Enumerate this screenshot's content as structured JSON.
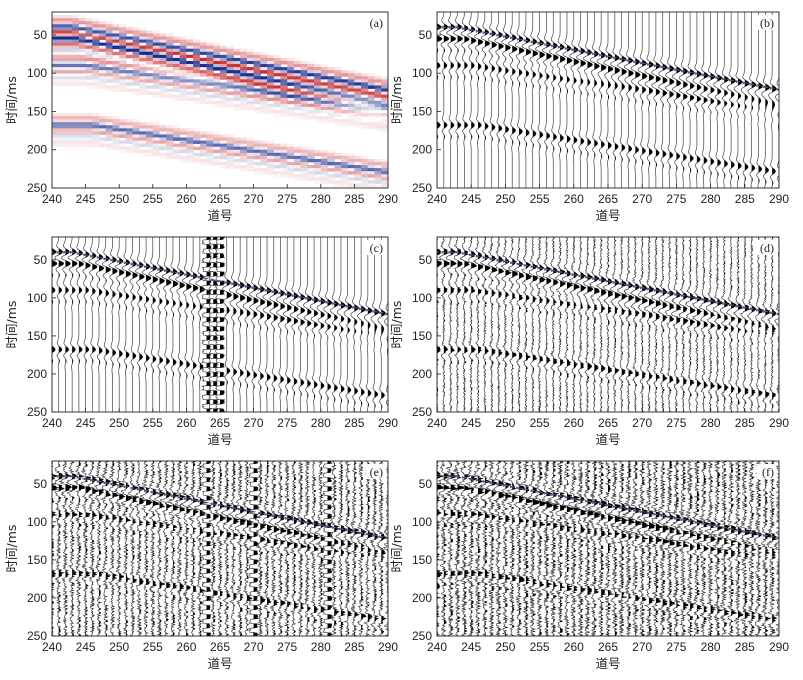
{
  "chart_data": {
    "type": "seismic-gather",
    "panels": [
      {
        "id": "a",
        "label": "(a)",
        "style": "image",
        "xlabel": "道号",
        "ylabel": "时间/ms",
        "xlim": [
          240,
          290
        ],
        "ylim": [
          250,
          20
        ],
        "xticks": [
          240,
          245,
          250,
          255,
          260,
          265,
          270,
          275,
          280,
          285,
          290
        ],
        "yticks": [
          50,
          100,
          150,
          200,
          250
        ],
        "noise": 0,
        "bad_traces": [],
        "picks": false
      },
      {
        "id": "b",
        "label": "(b)",
        "style": "wiggle",
        "xlabel": "道号",
        "ylabel": "时间/ms",
        "xlim": [
          240,
          290
        ],
        "ylim": [
          250,
          20
        ],
        "xticks": [
          240,
          245,
          250,
          255,
          260,
          265,
          270,
          275,
          280,
          285,
          290
        ],
        "yticks": [
          50,
          100,
          150,
          200,
          250
        ],
        "noise": 0,
        "bad_traces": [],
        "picks": true
      },
      {
        "id": "c",
        "label": "(c)",
        "style": "wiggle",
        "xlabel": "道号",
        "ylabel": "时间/ms",
        "xlim": [
          240,
          290
        ],
        "ylim": [
          250,
          20
        ],
        "xticks": [
          240,
          245,
          250,
          255,
          260,
          265,
          270,
          275,
          280,
          285,
          290
        ],
        "yticks": [
          50,
          100,
          150,
          200,
          250
        ],
        "noise": 0,
        "bad_traces": [
          263,
          264,
          265
        ],
        "picks": true
      },
      {
        "id": "d",
        "label": "(d)",
        "style": "wiggle",
        "xlabel": "道号",
        "ylabel": "时间/ms",
        "xlim": [
          240,
          290
        ],
        "ylim": [
          250,
          20
        ],
        "xticks": [
          240,
          245,
          250,
          255,
          260,
          265,
          270,
          275,
          280,
          285,
          290
        ],
        "yticks": [
          50,
          100,
          150,
          200,
          250
        ],
        "noise": 0.22,
        "bad_traces": [],
        "picks": true
      },
      {
        "id": "e",
        "label": "(e)",
        "style": "wiggle",
        "xlabel": "道号",
        "ylabel": "时间/ms",
        "xlim": [
          240,
          290
        ],
        "ylim": [
          250,
          20
        ],
        "xticks": [
          240,
          245,
          250,
          255,
          260,
          265,
          270,
          275,
          280,
          285,
          290
        ],
        "yticks": [
          50,
          100,
          150,
          200,
          250
        ],
        "noise": 0.45,
        "bad_traces": [
          263,
          270,
          281
        ],
        "picks": true
      },
      {
        "id": "f",
        "label": "(f)",
        "style": "wiggle",
        "xlabel": "道号",
        "ylabel": "时间/ms",
        "xlim": [
          240,
          290
        ],
        "ylim": [
          250,
          20
        ],
        "xticks": [
          240,
          245,
          250,
          255,
          260,
          265,
          270,
          275,
          280,
          285,
          290
        ],
        "yticks": [
          50,
          100,
          150,
          200,
          250
        ],
        "noise": 0.55,
        "bad_traces": [],
        "picks": true
      }
    ],
    "events": [
      {
        "name": "first-arrival",
        "t0": 40,
        "apex_trace": 243,
        "slope": 1.75,
        "amplitude": 1.0
      },
      {
        "name": "event-2",
        "t0": 55,
        "apex_trace": 244,
        "slope": 1.9,
        "amplitude": 0.9
      },
      {
        "name": "event-3",
        "t0": 90,
        "apex_trace": 245,
        "slope": 1.3,
        "amplitude": 0.7
      },
      {
        "name": "event-4",
        "t0": 168,
        "apex_trace": 246,
        "slope": 1.4,
        "amplitude": 0.75
      }
    ],
    "pick_markers": {
      "color": "#3b5ca8",
      "accent": "#d43a3a",
      "t0": 40,
      "apex_trace": 243,
      "slope": 1.73
    },
    "colors": {
      "positive": "#1a2a8c",
      "negative": "#c0141a",
      "wiggle_fill": "#000000",
      "wiggle_line": "#444444"
    }
  }
}
